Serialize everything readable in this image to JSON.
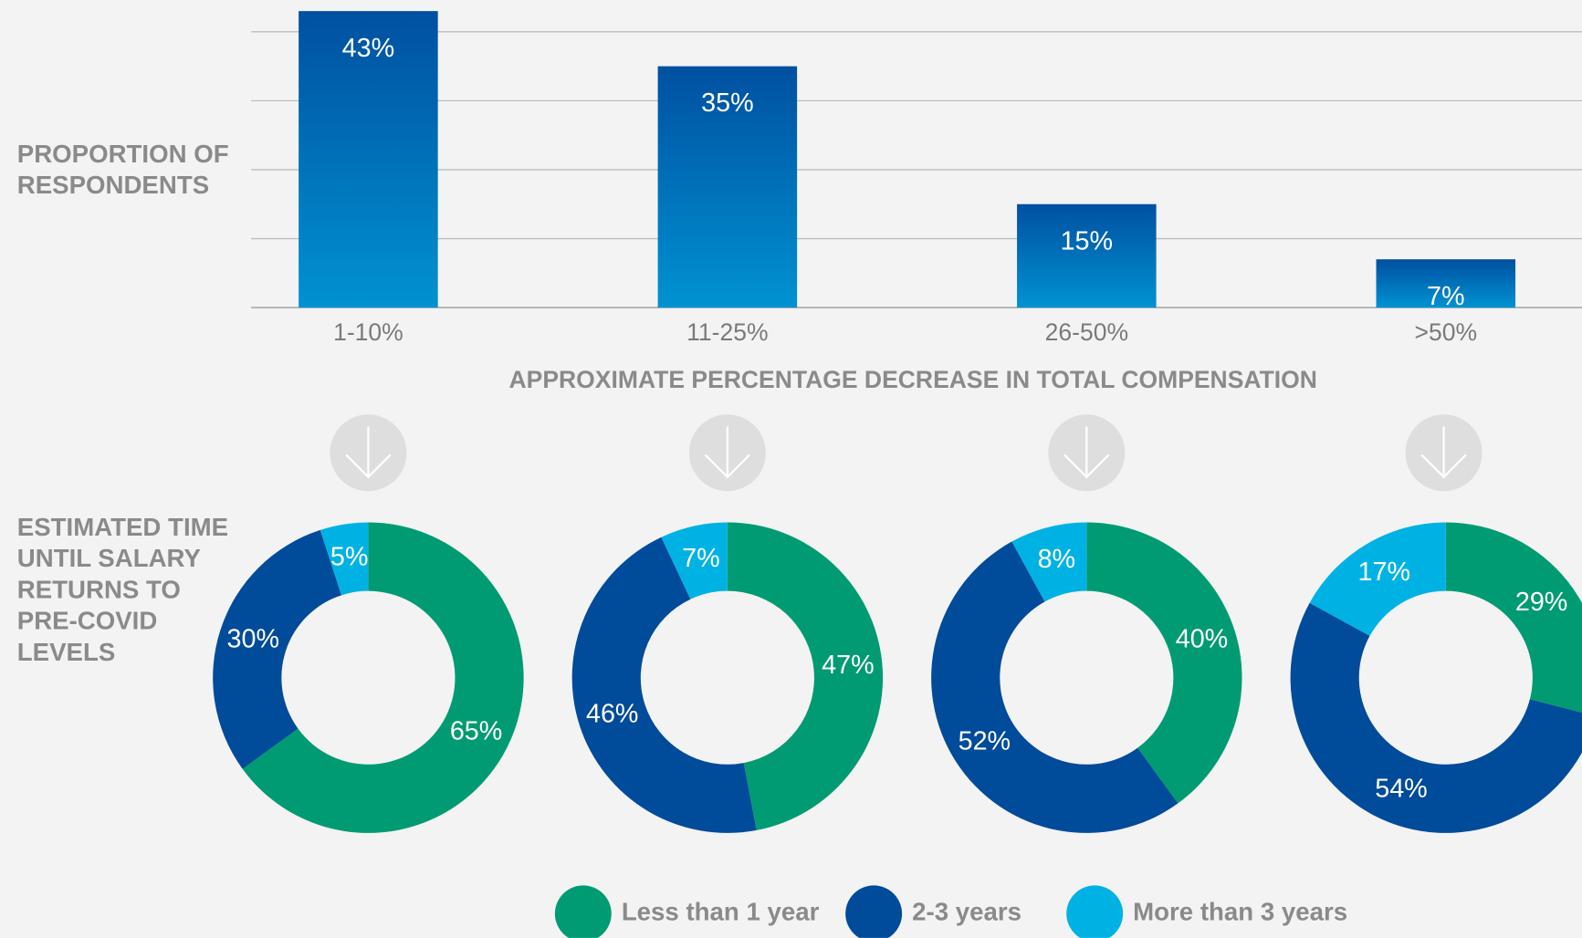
{
  "chart_data": [
    {
      "type": "bar",
      "y_label": "PROPORTION OF RESPONDENTS",
      "x_label": "APPROXIMATE PERCENTAGE DECREASE IN TOTAL COMPENSATION",
      "categories": [
        "1-10%",
        "11-25%",
        "26-50%",
        ">50%"
      ],
      "values": [
        43,
        35,
        15,
        7
      ],
      "value_labels": [
        "43%",
        "35%",
        "15%",
        "7%"
      ],
      "colors": [
        "#0050a0",
        "#0092d2"
      ],
      "ylim": [
        0,
        43
      ],
      "yticks": [
        0,
        10,
        20,
        30,
        40
      ],
      "grid": true,
      "tick_labels": false
    },
    {
      "type": "donut",
      "title": "ESTIMATED TIME UNTIL SALARY RETURNS TO PRE-COVID LEVELS",
      "categories": [
        "Less than 1 year",
        "2-3 years",
        "More than 3 years"
      ],
      "colors": [
        "#009b72",
        "#004b9a",
        "#00b2e3"
      ],
      "groups": [
        {
          "values": [
            65,
            30,
            5
          ],
          "value_labels": [
            "65%",
            "30%",
            "5%"
          ]
        },
        {
          "values": [
            47,
            46,
            7
          ],
          "value_labels": [
            "47%",
            "46%",
            "7%"
          ]
        },
        {
          "values": [
            40,
            52,
            8
          ],
          "value_labels": [
            "40%",
            "52%",
            "8%"
          ]
        },
        {
          "values": [
            29,
            54,
            17
          ],
          "value_labels": [
            "29%",
            "54%",
            "17%"
          ]
        }
      ],
      "legend": "bottom"
    }
  ]
}
